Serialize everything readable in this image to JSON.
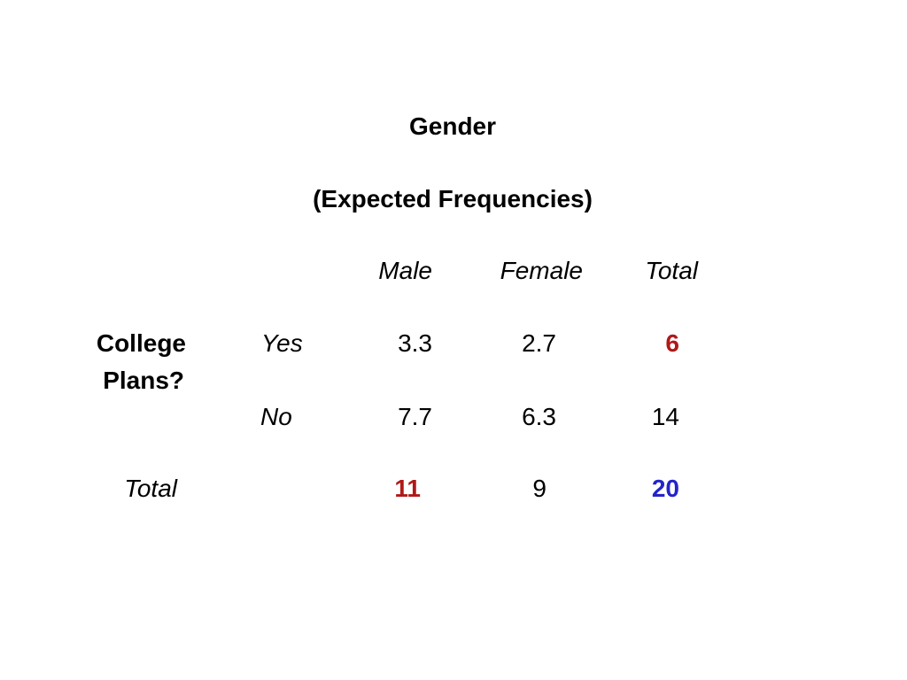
{
  "title": "Gender",
  "subtitle": "(Expected Frequencies)",
  "columns": {
    "male": "Male",
    "female": "Female",
    "total": "Total"
  },
  "row_group": {
    "label_line1": "College",
    "label_line2": "Plans?"
  },
  "rows": [
    {
      "label": "Yes",
      "male": "3.3",
      "female": "2.7",
      "total": "6"
    },
    {
      "label": "No",
      "male": "7.7",
      "female": "6.3",
      "total": "14"
    }
  ],
  "totals": {
    "label": "Total",
    "male": "11",
    "female": "9",
    "total": "20"
  },
  "colors": {
    "highlight_red": "#b01818",
    "highlight_blue": "#2424c8"
  }
}
